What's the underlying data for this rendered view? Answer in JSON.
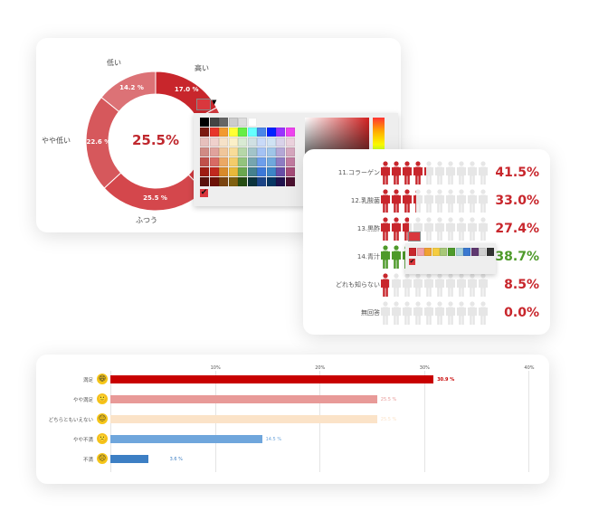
{
  "donut": {
    "center_value": "25.5%",
    "segments": [
      {
        "label": "高い",
        "value": 17.0,
        "text": "17.0 %",
        "color": "#c8262c"
      },
      {
        "label": "",
        "value": 20.7,
        "text": "",
        "color": "#d23a3f"
      },
      {
        "label": "ふつう",
        "value": 25.5,
        "text": "25.5 %",
        "color": "#d4474c"
      },
      {
        "label": "やや低い",
        "value": 22.6,
        "text": "22.6 %",
        "color": "#d6585c"
      },
      {
        "label": "低い",
        "value": 14.2,
        "text": "14.2 %",
        "color": "#dc7276"
      }
    ]
  },
  "color_picker": {
    "selected": "#d9373d",
    "rows": [
      [
        "#000000",
        "#444444",
        "#666666",
        "#cccccc",
        "#dddddd",
        "#ffffff"
      ],
      [
        "#7a1a10",
        "#e8352a",
        "#f29a2e",
        "#ffff33",
        "#66ee44",
        "#66ffff",
        "#4a86e8",
        "#0022ff",
        "#9933ff",
        "#ee44ee"
      ],
      [
        "#e6c0bc",
        "#efd0cc",
        "#f6e2c8",
        "#fbf0c8",
        "#d9ead3",
        "#d0e0e3",
        "#c9daf8",
        "#cfe2f3",
        "#d9d2e9",
        "#ead1dc"
      ],
      [
        "#d08b84",
        "#e0a29c",
        "#f0c69a",
        "#f8dc98",
        "#b6d7a8",
        "#a2c4c9",
        "#a4c2f4",
        "#9fc5e8",
        "#b4a7d6",
        "#d5a6bd"
      ],
      [
        "#c0504a",
        "#d86a64",
        "#eba864",
        "#f3cc6a",
        "#93c47d",
        "#76a5af",
        "#6d9eeb",
        "#6fa8dc",
        "#8e7cc3",
        "#c27ba0"
      ],
      [
        "#9e1c12",
        "#c0281e",
        "#d88a2a",
        "#e8b83a",
        "#6aa84f",
        "#45818e",
        "#3c78d8",
        "#3d85c6",
        "#674ea7",
        "#a64d79"
      ],
      [
        "#5a120c",
        "#6e1208",
        "#7a4410",
        "#7f6010",
        "#274e13",
        "#0c343d",
        "#1c4587",
        "#073763",
        "#20124d",
        "#4c1130"
      ]
    ]
  },
  "pictogram": {
    "rows": [
      {
        "label": "11.コラーゲン",
        "value": 41.5,
        "text": "41.5%",
        "color": "#c8262c"
      },
      {
        "label": "12.乳酸菌",
        "value": 33.0,
        "text": "33.0%",
        "color": "#c8262c"
      },
      {
        "label": "13.黒酢",
        "value": 27.4,
        "text": "27.4%",
        "color": "#c8262c"
      },
      {
        "label": "14.青汁",
        "value": 38.7,
        "text": "38.7%",
        "color": "#4e9a2a"
      },
      {
        "label": "どれも知らない",
        "value": 8.5,
        "text": "8.5%",
        "color": "#c8262c"
      },
      {
        "label": "無回答",
        "value": 0.0,
        "text": "0.0%",
        "color": "#c8262c"
      }
    ],
    "mini_palette": [
      "#c8262c",
      "#f0a0a8",
      "#f0a030",
      "#f5cc40",
      "#a8c878",
      "#4e9a2a",
      "#a8d0d8",
      "#3a78d0",
      "#603870",
      "#d0d0d0",
      "#333333"
    ]
  },
  "chart_data": {
    "type": "bar",
    "orientation": "horizontal",
    "categories": [
      "満足",
      "やや満足",
      "どちらともいえない",
      "やや不満",
      "不満"
    ],
    "values": [
      30.9,
      25.5,
      25.5,
      14.5,
      3.6
    ],
    "labels": [
      "30.9 %",
      "25.5 %",
      "25.5 %",
      "14.5 %",
      "3.6 %"
    ],
    "colors": [
      "#c80000",
      "#e89a98",
      "#fbe3c8",
      "#6fa6dc",
      "#3d7fc4"
    ],
    "faces": [
      "😄",
      "🙂",
      "😐",
      "🙁",
      "☹"
    ],
    "xticks": [
      "10%",
      "20%",
      "30%",
      "40%"
    ],
    "xlim": [
      0,
      40
    ]
  }
}
